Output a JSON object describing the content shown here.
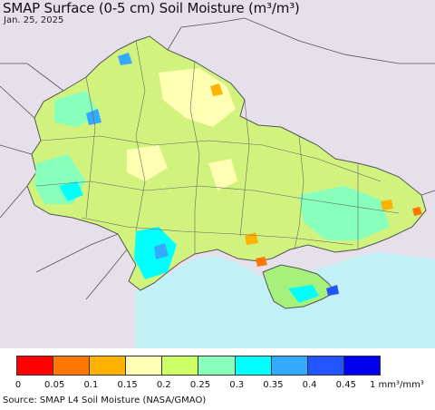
{
  "title": "SMAP Surface (0-5 cm) Soil Moisture (m³/m³)",
  "date": "Jan. 25, 2025",
  "legend": {
    "colors": [
      "#ff0000",
      "#ff7700",
      "#ffb300",
      "#ffffb3",
      "#ccff66",
      "#88ffbb",
      "#00ffff",
      "#33aaff",
      "#2255ff",
      "#0000ee"
    ],
    "ticks": [
      "0",
      "0.05",
      "0.1",
      "0.15",
      "0.2",
      "0.25",
      "0.3",
      "0.35",
      "0.4",
      "0.45"
    ],
    "unit": "1 mm³/mm³"
  },
  "source": "Source: SMAP L4 Soil Moisture (NASA/GMAO)",
  "map_colors": {
    "background": "#e6e0ea",
    "sea": "#c2f0f7",
    "border": "#555555"
  }
}
